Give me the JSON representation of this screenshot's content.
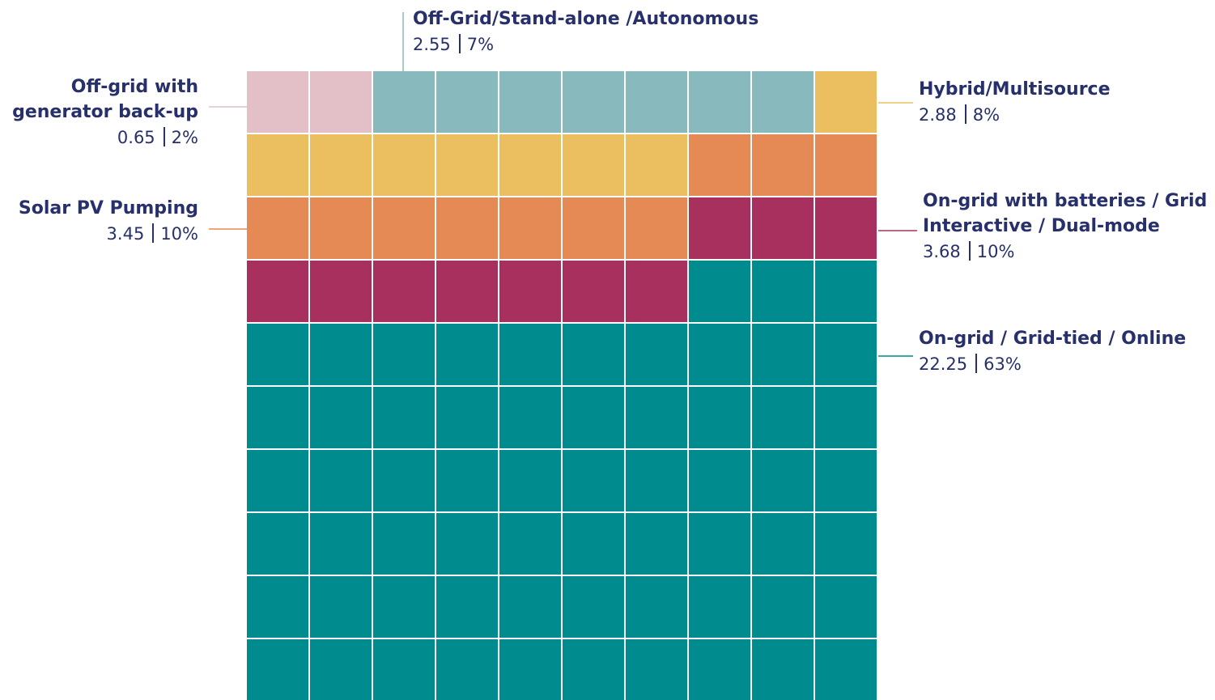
{
  "chart_data": {
    "type": "waffle",
    "series": [
      {
        "name": "Off-grid with\ngenerator back-up",
        "color": "#e3bfc8",
        "amount": 0.65,
        "share": 2,
        "share_label": "2%"
      },
      {
        "name": "Off-Grid/Stand-alone /Autonomous",
        "color": "#88b9bd",
        "amount": 2.55,
        "share": 7,
        "share_label": "7%"
      },
      {
        "name": "Hybrid/Multisource",
        "color": "#ebbf5f",
        "amount": 2.88,
        "share": 8,
        "share_label": "8%"
      },
      {
        "name": "Solar PV Pumping",
        "color": "#e68a55",
        "amount": 3.45,
        "share": 10,
        "share_label": "10%"
      },
      {
        "name": "On-grid with batteries / Grid\nInteractive / Dual-mode",
        "color": "#a8305f",
        "amount": 3.68,
        "share": 10,
        "share_label": "10%"
      },
      {
        "name": "On-grid / Grid-tied / Online",
        "color": "#008b8f",
        "amount": 22.25,
        "share": 63,
        "share_label": "63%"
      }
    ]
  }
}
